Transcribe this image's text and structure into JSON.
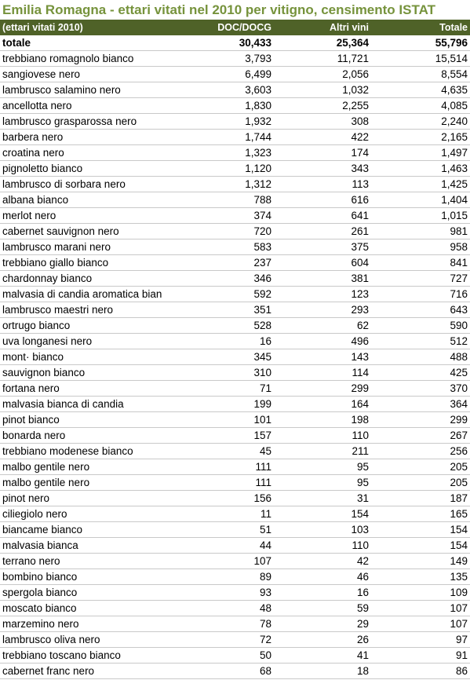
{
  "title": "Emilia Romagna - ettari vitati nel 2010 per vitigno, censimento ISTAT",
  "colors": {
    "title": "#76933C",
    "header_bg": "#4F6228",
    "header_text": "#ffffff"
  },
  "header": {
    "col1": "(ettari vitati 2010)",
    "col2": "DOC/DOCG",
    "col3": "Altri vini",
    "col4": "Totale"
  },
  "total": {
    "name": "totale",
    "doc": "30,433",
    "altri": "25,364",
    "totale": "55,796"
  },
  "rows": [
    {
      "name": "trebbiano romagnolo bianco",
      "doc": "3,793",
      "altri": "11,721",
      "totale": "15,514"
    },
    {
      "name": "sangiovese nero",
      "doc": "6,499",
      "altri": "2,056",
      "totale": "8,554"
    },
    {
      "name": "lambrusco salamino nero",
      "doc": "3,603",
      "altri": "1,032",
      "totale": "4,635"
    },
    {
      "name": "ancellotta nero",
      "doc": "1,830",
      "altri": "2,255",
      "totale": "4,085"
    },
    {
      "name": "lambrusco grasparossa nero",
      "doc": "1,932",
      "altri": "308",
      "totale": "2,240"
    },
    {
      "name": "barbera nero",
      "doc": "1,744",
      "altri": "422",
      "totale": "2,165"
    },
    {
      "name": "croatina nero",
      "doc": "1,323",
      "altri": "174",
      "totale": "1,497"
    },
    {
      "name": "pignoletto bianco",
      "doc": "1,120",
      "altri": "343",
      "totale": "1,463"
    },
    {
      "name": "lambrusco di sorbara nero",
      "doc": "1,312",
      "altri": "113",
      "totale": "1,425"
    },
    {
      "name": "albana bianco",
      "doc": "788",
      "altri": "616",
      "totale": "1,404"
    },
    {
      "name": "merlot nero",
      "doc": "374",
      "altri": "641",
      "totale": "1,015"
    },
    {
      "name": "cabernet sauvignon nero",
      "doc": "720",
      "altri": "261",
      "totale": "981"
    },
    {
      "name": "lambrusco marani nero",
      "doc": "583",
      "altri": "375",
      "totale": "958"
    },
    {
      "name": "trebbiano giallo bianco",
      "doc": "237",
      "altri": "604",
      "totale": "841"
    },
    {
      "name": "chardonnay bianco",
      "doc": "346",
      "altri": "381",
      "totale": "727"
    },
    {
      "name": "malvasia di candia aromatica bian",
      "doc": "592",
      "altri": "123",
      "totale": "716"
    },
    {
      "name": "lambrusco maestri nero",
      "doc": "351",
      "altri": "293",
      "totale": "643"
    },
    {
      "name": "ortrugo bianco",
      "doc": "528",
      "altri": "62",
      "totale": "590"
    },
    {
      "name": "uva longanesi nero",
      "doc": "16",
      "altri": "496",
      "totale": "512"
    },
    {
      "name": "mont· bianco",
      "doc": "345",
      "altri": "143",
      "totale": "488"
    },
    {
      "name": "sauvignon bianco",
      "doc": "310",
      "altri": "114",
      "totale": "425"
    },
    {
      "name": "fortana nero",
      "doc": "71",
      "altri": "299",
      "totale": "370"
    },
    {
      "name": "malvasia bianca di candia",
      "doc": "199",
      "altri": "164",
      "totale": "364"
    },
    {
      "name": "pinot bianco",
      "doc": "101",
      "altri": "198",
      "totale": "299"
    },
    {
      "name": "bonarda nero",
      "doc": "157",
      "altri": "110",
      "totale": "267"
    },
    {
      "name": "trebbiano modenese bianco",
      "doc": "45",
      "altri": "211",
      "totale": "256"
    },
    {
      "name": "malbo gentile nero",
      "doc": "111",
      "altri": "95",
      "totale": "205"
    },
    {
      "name": "malbo gentile nero",
      "doc": "111",
      "altri": "95",
      "totale": "205"
    },
    {
      "name": "pinot nero",
      "doc": "156",
      "altri": "31",
      "totale": "187"
    },
    {
      "name": "ciliegiolo nero",
      "doc": "11",
      "altri": "154",
      "totale": "165"
    },
    {
      "name": "biancame bianco",
      "doc": "51",
      "altri": "103",
      "totale": "154"
    },
    {
      "name": "malvasia bianca",
      "doc": "44",
      "altri": "110",
      "totale": "154"
    },
    {
      "name": "terrano nero",
      "doc": "107",
      "altri": "42",
      "totale": "149"
    },
    {
      "name": "bombino bianco",
      "doc": "89",
      "altri": "46",
      "totale": "135"
    },
    {
      "name": "spergola bianco",
      "doc": "93",
      "altri": "16",
      "totale": "109"
    },
    {
      "name": "moscato bianco",
      "doc": "48",
      "altri": "59",
      "totale": "107"
    },
    {
      "name": "marzemino nero",
      "doc": "78",
      "altri": "29",
      "totale": "107"
    },
    {
      "name": "lambrusco oliva nero",
      "doc": "72",
      "altri": "26",
      "totale": "97"
    },
    {
      "name": "trebbiano toscano bianco",
      "doc": "50",
      "altri": "41",
      "totale": "91"
    },
    {
      "name": "cabernet franc nero",
      "doc": "68",
      "altri": "18",
      "totale": "86"
    }
  ]
}
